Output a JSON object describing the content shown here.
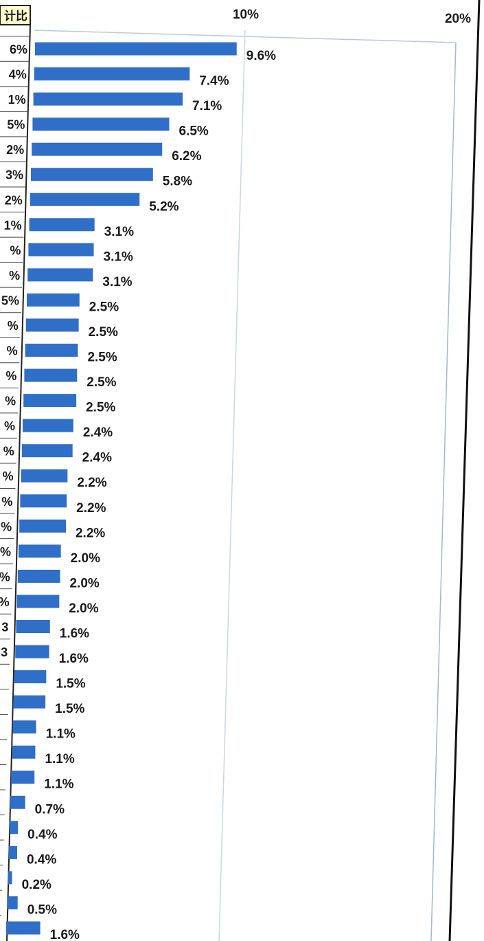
{
  "left_table": {
    "header": "计比",
    "header_bg": "#ffffcc",
    "visible_values": [
      "6%",
      "4%",
      "1%",
      "5%",
      "2%",
      "3%",
      "2%",
      "1%",
      "%",
      "%",
      "5%",
      "%",
      "%",
      "%",
      "%",
      "%",
      "%",
      "%",
      "%",
      "%",
      "%",
      "%",
      "%",
      "3",
      "3",
      "",
      "",
      "",
      "",
      "",
      "",
      "",
      "",
      "",
      "",
      ""
    ]
  },
  "chart_data": {
    "type": "bar",
    "orientation": "horizontal",
    "x_ticks": [
      "10%",
      "20%"
    ],
    "xlim": [
      0,
      20
    ],
    "grid": true,
    "bar_color": "#2f6fc7",
    "gridline_color": "#9fb8d6",
    "values": [
      9.6,
      7.4,
      7.1,
      6.5,
      6.2,
      5.8,
      5.2,
      3.1,
      3.1,
      3.1,
      2.5,
      2.5,
      2.5,
      2.5,
      2.5,
      2.4,
      2.4,
      2.2,
      2.2,
      2.2,
      2.0,
      2.0,
      2.0,
      1.6,
      1.6,
      1.5,
      1.5,
      1.1,
      1.1,
      1.1,
      0.7,
      0.4,
      0.4,
      0.2,
      0.5,
      1.6
    ],
    "data_labels": [
      "9.6%",
      "7.4%",
      "7.1%",
      "6.5%",
      "6.2%",
      "5.8%",
      "5.2%",
      "3.1%",
      "3.1%",
      "3.1%",
      "2.5%",
      "2.5%",
      "2.5%",
      "2.5%",
      "2.5%",
      "2.4%",
      "2.4%",
      "2.2%",
      "2.2%",
      "2.2%",
      "2.0%",
      "2.0%",
      "2.0%",
      "1.6%",
      "1.6%",
      "1.5%",
      "1.5%",
      "1.1%",
      "1.1%",
      "1.1%",
      "0.7%",
      "0.4%",
      "0.4%",
      "0.2%",
      "0.5%",
      "1.6%"
    ]
  }
}
